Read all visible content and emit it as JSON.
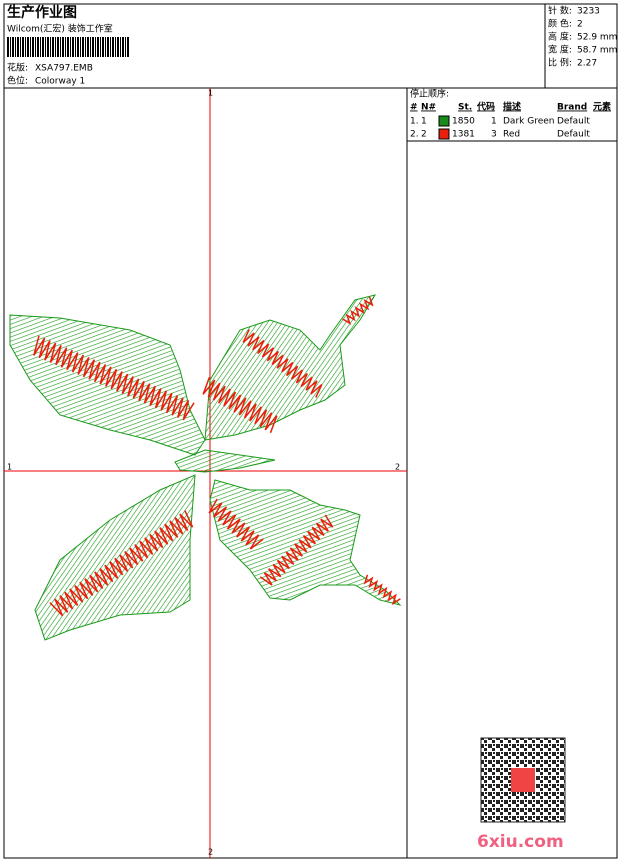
{
  "header": {
    "title": "生产作业图",
    "studio": "Wilcom(汇宏) 装饰工作室",
    "design_label": "花版:",
    "design": "XSA797.EMB",
    "colorway_label": "色位:",
    "colorway": "Colorway 1"
  },
  "stats": [
    {
      "label": "针 数:",
      "value": "3233"
    },
    {
      "label": "颜 色:",
      "value": "2"
    },
    {
      "label": "高 度:",
      "value": "52.9 mm"
    },
    {
      "label": "宽 度:",
      "value": "58.7 mm"
    },
    {
      "label": "比 例:",
      "value": "2.27"
    }
  ],
  "stop_sequence": {
    "title": "停止顺序:",
    "columns": [
      "#",
      "N#",
      "St.",
      "代码",
      "描述",
      "Brand",
      "元素"
    ],
    "rows": [
      {
        "index": "1.",
        "needle": "1",
        "color": "#1a8a1a",
        "stitches": "1850",
        "code": "1",
        "description": "Dark Green",
        "brand": "Default"
      },
      {
        "index": "2.",
        "needle": "2",
        "color": "#e8200c",
        "stitches": "1381",
        "code": "3",
        "description": "Red",
        "brand": "Default"
      }
    ]
  },
  "axes": {
    "top": "1",
    "left": "1",
    "right": "2",
    "bottom": "2"
  },
  "watermark": "6xiu.com"
}
